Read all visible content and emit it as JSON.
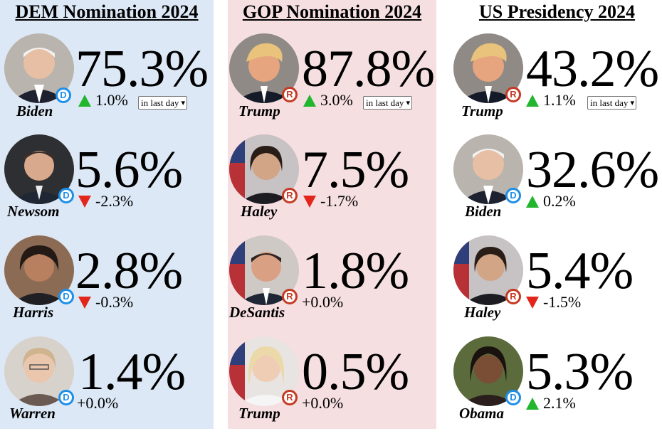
{
  "columns": [
    {
      "title": "DEM Nomination 2024",
      "period_select": "in last day",
      "candidates": [
        {
          "name": "Biden",
          "party": "D",
          "pct": "75.3%",
          "change": "1.0%",
          "direction": "up"
        },
        {
          "name": "Newsom",
          "party": "D",
          "pct": "5.6%",
          "change": "-2.3%",
          "direction": "down"
        },
        {
          "name": "Harris",
          "party": "D",
          "pct": "2.8%",
          "change": "-0.3%",
          "direction": "down"
        },
        {
          "name": "Warren",
          "party": "D",
          "pct": "1.4%",
          "change": "+0.0%",
          "direction": "none"
        }
      ]
    },
    {
      "title": "GOP Nomination 2024",
      "period_select": "in last day",
      "candidates": [
        {
          "name": "Trump",
          "party": "R",
          "pct": "87.8%",
          "change": "3.0%",
          "direction": "up"
        },
        {
          "name": "Haley",
          "party": "R",
          "pct": "7.5%",
          "change": "-1.7%",
          "direction": "down"
        },
        {
          "name": "DeSantis",
          "party": "R",
          "pct": "1.8%",
          "change": "+0.0%",
          "direction": "none"
        },
        {
          "name": "Trump",
          "party": "R",
          "pct": "0.5%",
          "change": "+0.0%",
          "direction": "none"
        }
      ]
    },
    {
      "title": "US Presidency 2024",
      "period_select": "in last day",
      "candidates": [
        {
          "name": "Trump",
          "party": "R",
          "pct": "43.2%",
          "change": "1.1%",
          "direction": "up"
        },
        {
          "name": "Biden",
          "party": "D",
          "pct": "32.6%",
          "change": "0.2%",
          "direction": "up"
        },
        {
          "name": "Haley",
          "party": "R",
          "pct": "5.4%",
          "change": "-1.5%",
          "direction": "down"
        },
        {
          "name": "Obama",
          "party": "D",
          "pct": "5.3%",
          "change": "2.1%",
          "direction": "up"
        }
      ]
    }
  ],
  "colors": {
    "dem_bg": "#dce8f6",
    "gop_bg": "#f6dfe1",
    "dem_badge": "#1e8fe8",
    "gop_badge": "#c53a24",
    "up_arrow": "#21b62e",
    "down_arrow": "#e3261c"
  },
  "icons": {
    "up": "triangle-up-icon",
    "down": "triangle-down-icon",
    "select": "chevron-down-icon"
  }
}
